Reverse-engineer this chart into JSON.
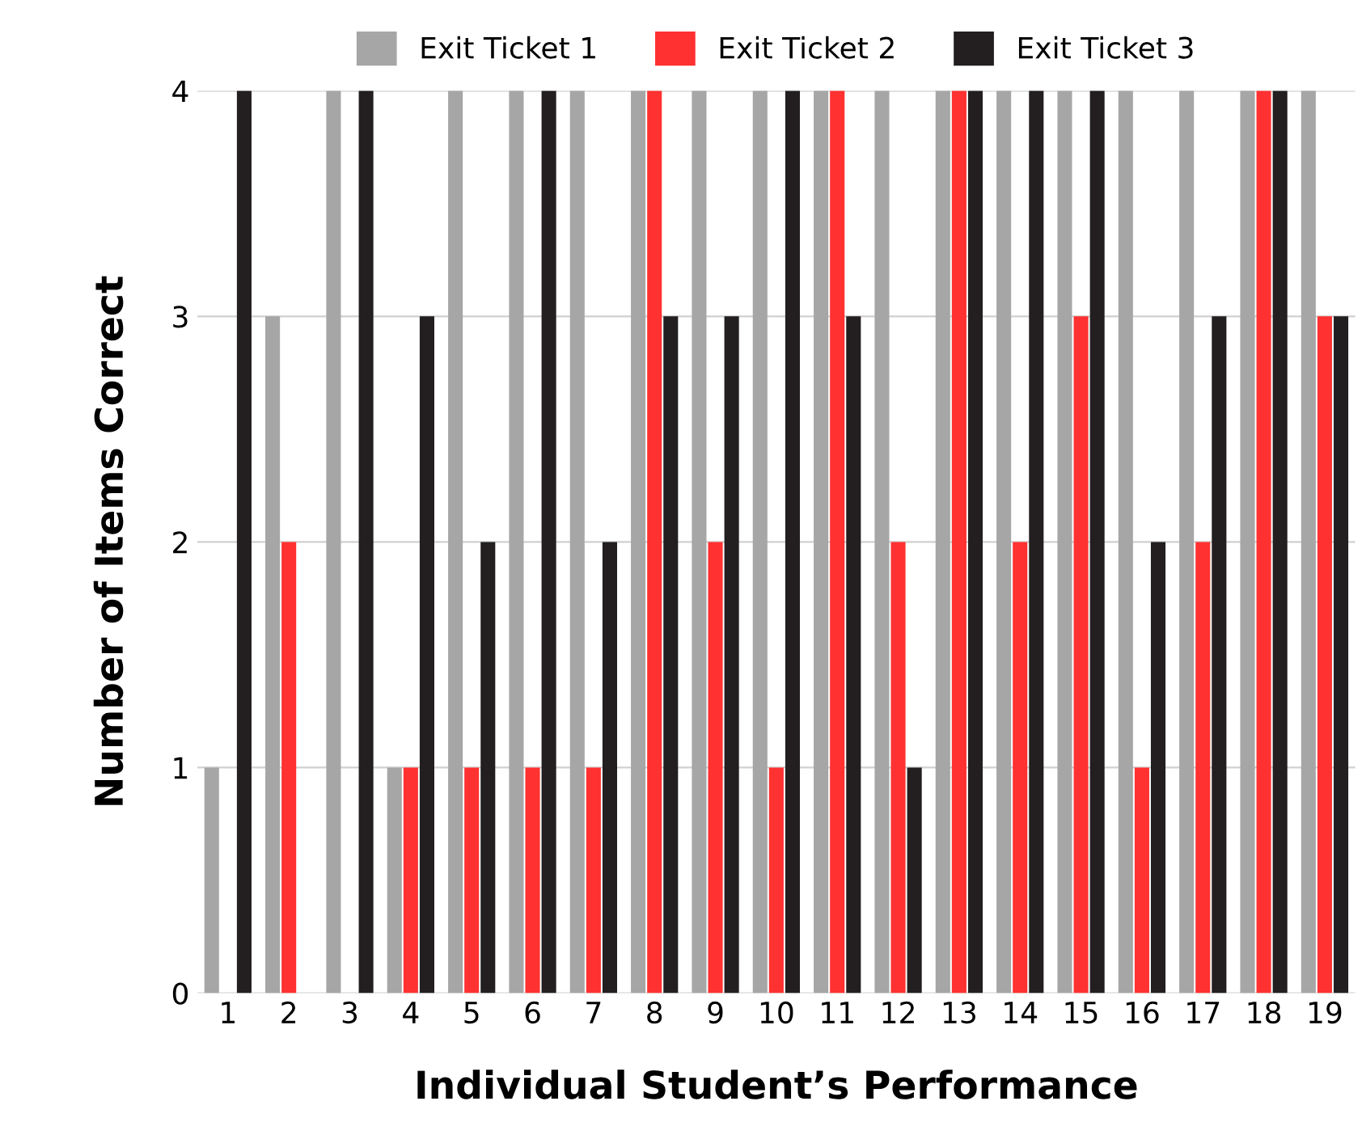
{
  "chart_data": {
    "type": "bar",
    "xlabel": "Individual Student’s Performance",
    "ylabel": "Number of Items Correct",
    "categories": [
      "1",
      "2",
      "3",
      "4",
      "5",
      "6",
      "7",
      "8",
      "9",
      "10",
      "11",
      "12",
      "13",
      "14",
      "15",
      "16",
      "17",
      "18",
      "19"
    ],
    "series": [
      {
        "name": "Exit Ticket 1",
        "color": "#a6a6a6",
        "values": [
          1,
          3,
          4,
          1,
          4,
          4,
          4,
          4,
          4,
          4,
          4,
          4,
          4,
          4,
          4,
          4,
          4,
          4,
          4
        ]
      },
      {
        "name": "Exit Ticket 2",
        "color": "#ff3131",
        "values": [
          0,
          2,
          0,
          1,
          1,
          1,
          1,
          4,
          2,
          1,
          4,
          2,
          4,
          2,
          3,
          1,
          2,
          4,
          3
        ]
      },
      {
        "name": "Exit Ticket 3",
        "color": "#231f20",
        "values": [
          4,
          0,
          4,
          3,
          2,
          4,
          2,
          3,
          3,
          4,
          3,
          1,
          4,
          4,
          4,
          2,
          3,
          4,
          3
        ]
      }
    ],
    "ylim": [
      0,
      4
    ],
    "yticks": [
      0,
      1,
      2,
      3,
      4
    ],
    "grid": "y",
    "legend": "top"
  }
}
